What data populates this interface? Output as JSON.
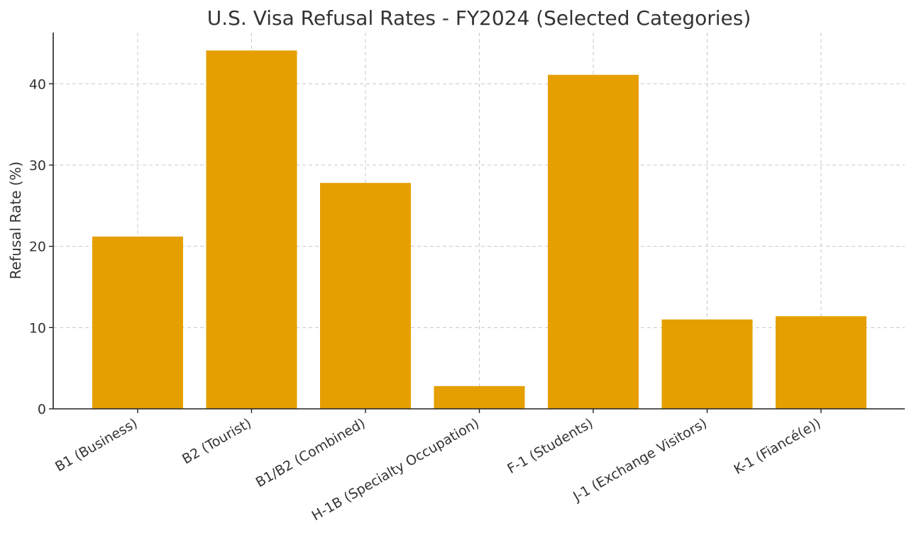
{
  "chart_data": {
    "type": "bar",
    "title": "U.S. Visa Refusal Rates - FY2024 (Selected Categories)",
    "xlabel": "",
    "ylabel": "Refusal Rate (%)",
    "categories": [
      "B1 (Business)",
      "B2 (Tourist)",
      "B1/B2 (Combined)",
      "H-1B (Specialty Occupation)",
      "F-1 (Students)",
      "J-1 (Exchange Visitors)",
      "K-1 (Fiancé(e))"
    ],
    "values": [
      21.2,
      44.1,
      27.8,
      2.8,
      41.1,
      11.0,
      11.4
    ],
    "ylim": [
      0,
      46.3
    ],
    "yticks": [
      0,
      10,
      20,
      30,
      40
    ],
    "grid": true,
    "bar_color": "#E69F00"
  }
}
